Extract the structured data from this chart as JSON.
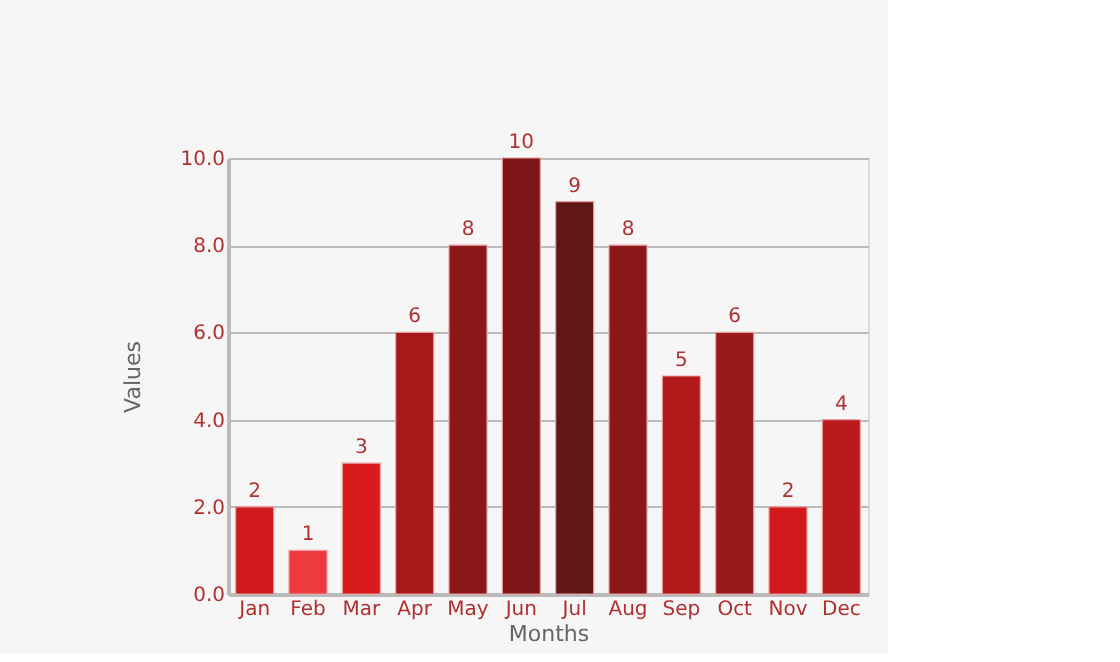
{
  "chart_data": {
    "type": "bar",
    "xlabel": "Months",
    "ylabel": "Values",
    "categories": [
      "Jan",
      "Feb",
      "Mar",
      "Apr",
      "May",
      "Jun",
      "Jul",
      "Aug",
      "Sep",
      "Oct",
      "Nov",
      "Dec"
    ],
    "values": [
      2,
      1,
      3,
      6,
      8,
      10,
      9,
      8,
      5,
      6,
      2,
      4
    ],
    "colors": [
      "#d01a1c",
      "#ee3a3c",
      "#d81b1d",
      "#a8181a",
      "#8c1719",
      "#7e1618",
      "#611718",
      "#8c1719",
      "#b2191b",
      "#9a191b",
      "#d21a1c",
      "#bb1a1c"
    ],
    "ylim": [
      0,
      10
    ],
    "yticks": [
      {
        "value": 0,
        "label": "0.0"
      },
      {
        "value": 2,
        "label": "2.0"
      },
      {
        "value": 4,
        "label": "4.0"
      },
      {
        "value": 6,
        "label": "6.0"
      },
      {
        "value": 8,
        "label": "8.0"
      },
      {
        "value": 10,
        "label": "10.0"
      }
    ],
    "grid": "y",
    "data_labels": true
  }
}
